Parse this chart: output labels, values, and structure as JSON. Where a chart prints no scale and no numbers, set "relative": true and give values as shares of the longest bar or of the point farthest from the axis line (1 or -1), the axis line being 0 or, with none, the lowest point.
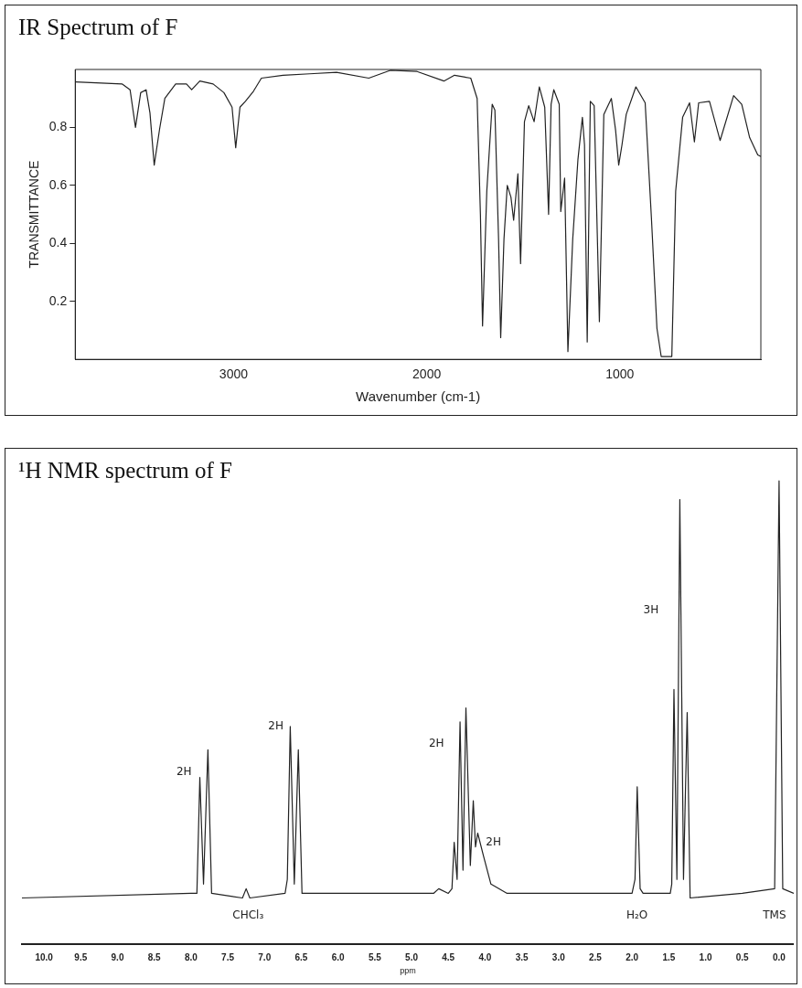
{
  "chart_data": [
    {
      "type": "line",
      "title": "IR Spectrum of F",
      "xlabel": "Wavenumber (cm-1)",
      "ylabel": "TRANSMITTANCE",
      "xlim": [
        3820,
        270
      ],
      "ylim": [
        0,
        1.0
      ],
      "xticks": [
        3000,
        2000,
        1000
      ],
      "yticks": [
        0.2,
        0.4,
        0.6,
        0.8
      ],
      "marker": "none",
      "series": [
        {
          "color": "#222222",
          "x": [
            3819,
            3578,
            3536,
            3508,
            3481,
            3453,
            3433,
            3411,
            3383,
            3356,
            3300,
            3244,
            3217,
            3175,
            3106,
            3050,
            3008,
            2989,
            2967,
            2939,
            2897,
            2856,
            2744,
            2606,
            2467,
            2300,
            2189,
            2050,
            1911,
            1856,
            1772,
            1739,
            1722,
            1711,
            1689,
            1661,
            1647,
            1628,
            1617,
            1600,
            1583,
            1564,
            1550,
            1528,
            1514,
            1494,
            1472,
            1444,
            1417,
            1389,
            1369,
            1356,
            1342,
            1314,
            1306,
            1286,
            1269,
            1244,
            1217,
            1194,
            1183,
            1169,
            1153,
            1133,
            1106,
            1083,
            1044,
            1022,
            1006,
            989,
            967,
            917,
            869,
            836,
            808,
            786,
            731,
            711,
            675,
            639,
            614,
            592,
            536,
            481,
            411,
            369,
            328,
            286,
            270
          ],
          "values": [
            0.957,
            0.95,
            0.93,
            0.8,
            0.92,
            0.93,
            0.85,
            0.67,
            0.795,
            0.9,
            0.95,
            0.95,
            0.93,
            0.96,
            0.95,
            0.92,
            0.87,
            0.73,
            0.87,
            0.89,
            0.925,
            0.97,
            0.98,
            0.985,
            0.99,
            0.97,
            0.997,
            0.993,
            0.96,
            0.98,
            0.97,
            0.9,
            0.5,
            0.115,
            0.58,
            0.88,
            0.86,
            0.415,
            0.075,
            0.415,
            0.6,
            0.56,
            0.48,
            0.64,
            0.33,
            0.82,
            0.875,
            0.82,
            0.94,
            0.87,
            0.5,
            0.88,
            0.93,
            0.88,
            0.51,
            0.625,
            0.027,
            0.415,
            0.69,
            0.835,
            0.74,
            0.06,
            0.89,
            0.875,
            0.13,
            0.845,
            0.9,
            0.79,
            0.67,
            0.74,
            0.845,
            0.94,
            0.885,
            0.48,
            0.107,
            0.01,
            0.01,
            0.58,
            0.835,
            0.885,
            0.75,
            0.885,
            0.89,
            0.755,
            0.91,
            0.88,
            0.765,
            0.705,
            0.7
          ]
        }
      ]
    },
    {
      "type": "line",
      "title": "¹H NMR spectrum of F",
      "xlabel": "ppm",
      "relative": true,
      "xlim": [
        10.3,
        -0.2
      ],
      "marker": "none",
      "xticks": [
        {
          "value": 10,
          "label": "10.0"
        },
        9.5,
        {
          "value": 9,
          "label": "9.0"
        },
        8.5,
        {
          "value": 8,
          "label": "8.0"
        },
        7.5,
        {
          "value": 7,
          "label": "7.0"
        },
        6.5,
        {
          "value": 6,
          "label": "6.0"
        },
        5.5,
        {
          "value": 5,
          "label": "5.0"
        },
        4.5,
        {
          "value": 4,
          "label": "4.0"
        },
        3.5,
        {
          "value": 3,
          "label": "3.0"
        },
        2.5,
        {
          "value": 2,
          "label": "2.0"
        },
        1.5,
        {
          "value": 1,
          "label": "1.0"
        },
        0.5,
        {
          "value": 0,
          "label": "0.0"
        }
      ],
      "series": [
        {
          "color": "#222222",
          "x": [
            10.3,
            8.0,
            7.92,
            7.88,
            7.83,
            7.77,
            7.72,
            7.3,
            7.25,
            7.2,
            6.72,
            6.69,
            6.65,
            6.595,
            6.54,
            6.49,
            5.0,
            4.7,
            4.63,
            4.5,
            4.45,
            4.42,
            4.38,
            4.34,
            4.3,
            4.26,
            4.2,
            4.16,
            4.13,
            4.1,
            4.02,
            3.92,
            3.7,
            2.5,
            2.0,
            1.96,
            1.93,
            1.89,
            1.85,
            1.48,
            1.46,
            1.43,
            1.39,
            1.35,
            1.3,
            1.25,
            1.21,
            0.5,
            0.06,
            0.0,
            -0.05,
            -0.2
          ],
          "values": [
            0.1,
            0.11,
            0.11,
            0.36,
            0.13,
            0.42,
            0.11,
            0.1,
            0.12,
            0.1,
            0.11,
            0.14,
            0.47,
            0.13,
            0.42,
            0.11,
            0.11,
            0.11,
            0.12,
            0.11,
            0.12,
            0.22,
            0.14,
            0.48,
            0.16,
            0.51,
            0.17,
            0.31,
            0.21,
            0.24,
            0.19,
            0.13,
            0.11,
            0.11,
            0.11,
            0.14,
            0.34,
            0.12,
            0.11,
            0.11,
            0.13,
            0.55,
            0.14,
            0.96,
            0.14,
            0.5,
            0.1,
            0.11,
            0.12,
            1.0,
            0.12,
            0.11
          ]
        }
      ],
      "annotations": [
        "2H",
        "2H",
        "2H",
        "2H",
        "3H",
        "CHCl₃",
        "H₂O",
        "TMS"
      ]
    }
  ]
}
